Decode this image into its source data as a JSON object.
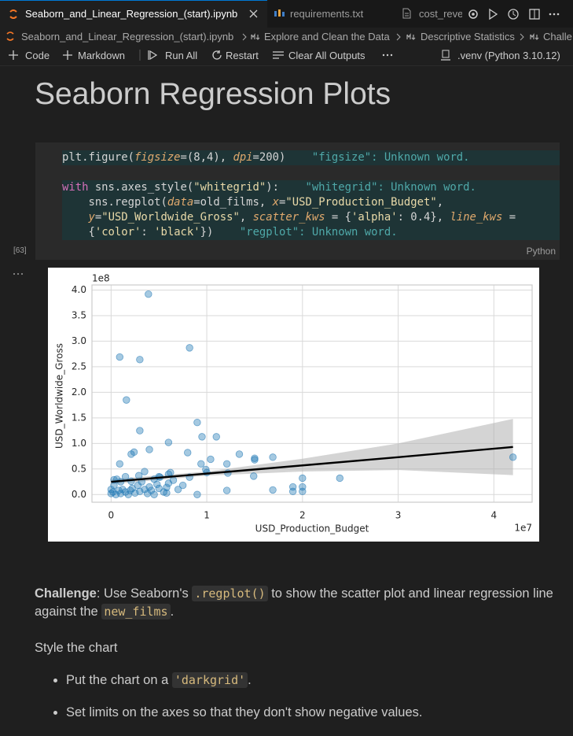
{
  "tabs": [
    "Seaborn_and_Linear_Regression_(start).ipynb",
    "requirements.txt",
    "cost_reve"
  ],
  "breadcrumb": [
    "Seaborn_and_Linear_Regression_(start).ipynb",
    "Explore and Clean the Data",
    "Descriptive Statistics",
    "Challe"
  ],
  "toolbar": {
    "code": "Code",
    "markdown": "Markdown",
    "run_all": "Run All",
    "restart": "Restart",
    "clear": "Clear All Outputs",
    "kernel": ".venv (Python 3.10.12)"
  },
  "heading": "Seaborn Regression Plots",
  "cell": {
    "execution_count": "[63]",
    "language": "Python",
    "lines": [
      {
        "highlight": true,
        "tokens": [
          {
            "text": "plt.figure(",
            "color": "#d4d4d4"
          },
          {
            "text": "figsize",
            "color": "#e0a96d",
            "italic": true
          },
          {
            "text": "=(8,4), ",
            "color": "#d4d4d4"
          },
          {
            "text": "dpi",
            "color": "#e0a96d",
            "italic": true
          },
          {
            "text": "=200)",
            "color": "#d4d4d4"
          },
          {
            "text": "    \"figsize\": Unknown word.",
            "color": "#4fa9a9"
          }
        ]
      },
      {
        "highlight": false,
        "tokens": []
      },
      {
        "highlight": true,
        "tokens": [
          {
            "text": "with",
            "color": "#d36fb8"
          },
          {
            "text": " sns.axes_style(",
            "color": "#d4d4d4"
          },
          {
            "text": "\"whitegrid\"",
            "color": "#e8d9a8"
          },
          {
            "text": "):",
            "color": "#d4d4d4"
          },
          {
            "text": "    \"whitegrid\": Unknown word.",
            "color": "#4fa9a9"
          }
        ]
      },
      {
        "highlight": true,
        "tokens": [
          {
            "text": "    sns.regplot(",
            "color": "#d4d4d4"
          },
          {
            "text": "data",
            "color": "#e0a96d",
            "italic": true
          },
          {
            "text": "=old_films, ",
            "color": "#d4d4d4"
          },
          {
            "text": "x",
            "color": "#e0a96d",
            "italic": true
          },
          {
            "text": "=",
            "color": "#d4d4d4"
          },
          {
            "text": "\"USD_Production_Budget\"",
            "color": "#e8d9a8"
          },
          {
            "text": ",",
            "color": "#d4d4d4"
          }
        ]
      },
      {
        "highlight": true,
        "tokens": [
          {
            "text": "    ",
            "color": "#d4d4d4"
          },
          {
            "text": "y",
            "color": "#e0a96d",
            "italic": true
          },
          {
            "text": "=",
            "color": "#d4d4d4"
          },
          {
            "text": "\"USD_Worldwide_Gross\"",
            "color": "#e8d9a8"
          },
          {
            "text": ", ",
            "color": "#d4d4d4"
          },
          {
            "text": "scatter_kws",
            "color": "#e0a96d",
            "italic": true
          },
          {
            "text": " = {",
            "color": "#d4d4d4"
          },
          {
            "text": "'alpha'",
            "color": "#e8d9a8"
          },
          {
            "text": ": 0.4}, ",
            "color": "#d4d4d4"
          },
          {
            "text": "line_kws",
            "color": "#e0a96d",
            "italic": true
          },
          {
            "text": " =",
            "color": "#d4d4d4"
          }
        ]
      },
      {
        "highlight": true,
        "tokens": [
          {
            "text": "    {",
            "color": "#d4d4d4"
          },
          {
            "text": "'color'",
            "color": "#e8d9a8"
          },
          {
            "text": ": ",
            "color": "#d4d4d4"
          },
          {
            "text": "'black'",
            "color": "#e8d9a8"
          },
          {
            "text": "})",
            "color": "#d4d4d4"
          },
          {
            "text": "    \"regplot\": Unknown word.",
            "color": "#4fa9a9"
          }
        ]
      }
    ]
  },
  "chart_data": {
    "type": "scatter",
    "xlabel": "USD_Production_Budget",
    "ylabel": "USD_Worldwide_Gross",
    "x_offset": "1e7",
    "y_offset": "1e8",
    "xlim": [
      -0.2,
      4.4
    ],
    "ylim": [
      -0.15,
      4.1
    ],
    "xticks": [
      0,
      1,
      2,
      3,
      4
    ],
    "yticks": [
      {
        "value": 0,
        "label": "0.0"
      },
      0.5,
      {
        "value": 1,
        "label": "1.0"
      },
      1.5,
      {
        "value": 2,
        "label": "2.0"
      },
      2.5,
      {
        "value": 3,
        "label": "3.0"
      },
      3.5,
      {
        "value": 4,
        "label": "4.0"
      }
    ],
    "grid": true,
    "color": "#1f77b4",
    "alpha": 0.4,
    "x": [
      0.39,
      0.82,
      0.09,
      0.3,
      0.16,
      0.9,
      0.3,
      0.95,
      1.1,
      0.6,
      0.4,
      0.24,
      0.21,
      0.8,
      1.34,
      1.69,
      1.5,
      1.5,
      0.09,
      1.04,
      1.21,
      0.94,
      0.99,
      1.0,
      0.35,
      0.62,
      1.22,
      0.82,
      1.49,
      2.0,
      2.39,
      0.51,
      0.29,
      0.03,
      0.21,
      1.9,
      2.0,
      1.69,
      1.21,
      0.9,
      0.58,
      0.58,
      2.0,
      1.9,
      4.2,
      0.0,
      0.02,
      0.05,
      0.08,
      0.1,
      0.12,
      0.15,
      0.18,
      0.2,
      0.22,
      0.25,
      0.28,
      0.3,
      0.32,
      0.35,
      0.38,
      0.4,
      0.42,
      0.45,
      0.48,
      0.5,
      0.55,
      0.6,
      0.65,
      0.7,
      0.75,
      0.03,
      0.06,
      0.1,
      0.15,
      0.5,
      0.45,
      0.6,
      0.0
    ],
    "values": [
      3.92,
      2.87,
      2.69,
      2.64,
      1.85,
      1.41,
      1.25,
      1.13,
      1.13,
      1.02,
      0.88,
      0.83,
      0.79,
      0.82,
      0.79,
      0.73,
      0.71,
      0.68,
      0.6,
      0.69,
      0.6,
      0.6,
      0.49,
      0.43,
      0.45,
      0.43,
      0.42,
      0.34,
      0.36,
      0.32,
      0.32,
      0.34,
      0.37,
      0.29,
      0.26,
      0.15,
      0.15,
      0.09,
      0.08,
      0.0,
      0.03,
      0.14,
      0.06,
      0.06,
      0.73,
      0.02,
      0.05,
      0.0,
      0.08,
      0.02,
      0.1,
      0.05,
      0.0,
      0.08,
      0.12,
      0.03,
      0.18,
      0.06,
      0.25,
      0.1,
      0.02,
      0.15,
      0.08,
      0.0,
      0.2,
      0.12,
      0.05,
      0.22,
      0.28,
      0.1,
      0.18,
      0.18,
      0.3,
      0.25,
      0.35,
      0.35,
      0.3,
      0.4,
      0.1
    ],
    "regression": {
      "color": "#000000",
      "band_color": "#b0b0b0",
      "x": [
        0,
        1,
        2,
        3,
        4.2
      ],
      "values": [
        0.25,
        0.41,
        0.57,
        0.73,
        0.93
      ],
      "upper": [
        0.3,
        0.45,
        0.7,
        1.0,
        1.48
      ],
      "lower": [
        0.2,
        0.37,
        0.45,
        0.48,
        0.38
      ]
    }
  },
  "markdown": {
    "paragraph": [
      {
        "text": "Challenge",
        "style": "bold"
      },
      {
        "text": ": Use Seaborn's "
      },
      {
        "text": ".regplot()",
        "style": "code"
      },
      {
        "text": " to show the scatter plot and linear regression line against the "
      },
      {
        "text": "new_films",
        "style": "code"
      },
      {
        "text": "."
      }
    ],
    "subheading": "Style the chart",
    "bullets": [
      [
        {
          "text": "Put the chart on a "
        },
        {
          "text": "'darkgrid'",
          "style": "code"
        },
        {
          "text": "."
        }
      ],
      [
        {
          "text": "Set limits on the axes so that they don't show negative values."
        }
      ]
    ]
  }
}
